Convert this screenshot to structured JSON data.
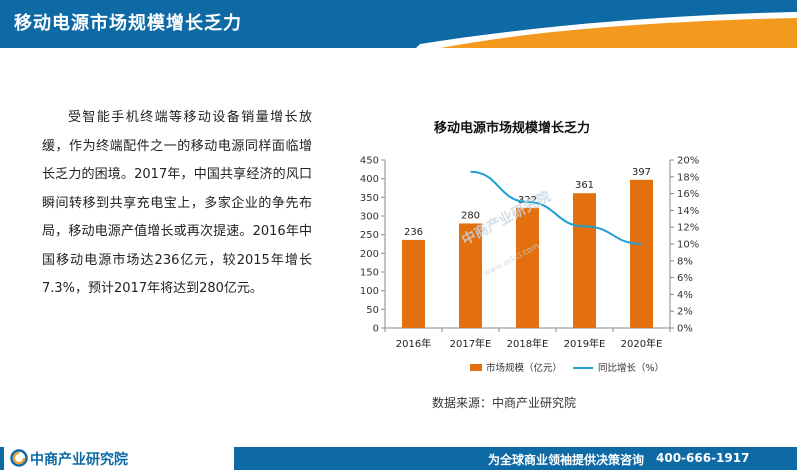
{
  "header": {
    "title": "移动电源市场规模增长乏力",
    "colors": {
      "blue": "#0e6aa5",
      "orange": "#f39a1e"
    }
  },
  "body": {
    "text": "受智能手机终端等移动设备销量增长放缓，作为终端配件之一的移动电源同样面临增长乏力的困境。2017年，中国共享经济的风口瞬间转移到共享充电宝上，多家企业的争先布局，移动电源产值增长或再次提速。2016年中国移动电源市场达236亿元，较2015年增长7.3%，预计2017年将达到280亿元。"
  },
  "chart_data": {
    "type": "bar",
    "title": "移动电源市场规模增长乏力",
    "categories": [
      "2016年",
      "2017年E",
      "2018年E",
      "2019年E",
      "2020年E"
    ],
    "series": [
      {
        "name": "市场规模（亿元）",
        "type": "bar",
        "values": [
          236,
          280,
          322,
          361,
          397
        ],
        "color": "#e2700f",
        "axis": "left"
      },
      {
        "name": "同比增长（%）",
        "type": "line",
        "values": [
          null,
          18.6,
          15.0,
          12.1,
          10.0
        ],
        "color": "#1f9fd6",
        "axis": "right"
      }
    ],
    "y_ticks": [
      "0",
      "50",
      "100",
      "150",
      "200",
      "250",
      "300",
      "350",
      "400",
      "450"
    ],
    "y2_ticks": [
      "0%",
      "2%",
      "4%",
      "6%",
      "8%",
      "10%",
      "12%",
      "14%",
      "16%",
      "18%",
      "20%"
    ],
    "ylim": [
      0,
      450
    ],
    "y2lim": [
      0,
      20
    ],
    "legend_position": "bottom",
    "grid": false
  },
  "watermark": {
    "text": "中商产业研究院",
    "sub": "www.askci.com"
  },
  "source": {
    "text": "数据来源：中商产业研究院"
  },
  "footer": {
    "logo_text": "中商产业研究院",
    "slogan": "为全球商业领袖提供决策咨询",
    "phone": "400-666-1917"
  }
}
